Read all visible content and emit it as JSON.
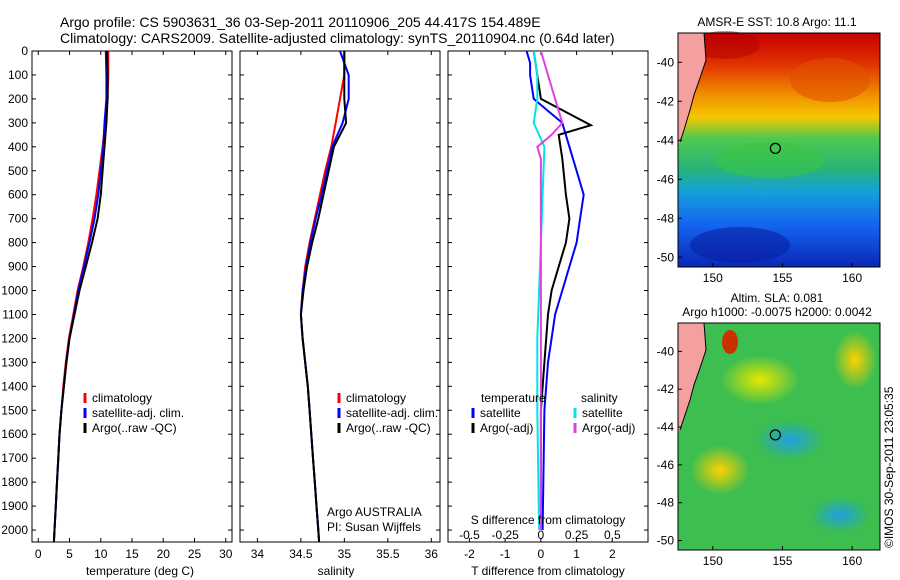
{
  "figure": {
    "title_line1": "Argo profile: CS 5903631_36 03-Sep-2011 20110906_205 44.417S 154.489E",
    "title_line2": "Climatology: CARS2009. Satellite-adjusted climatology: synTS_20110904.nc (0.64d later)",
    "credit": "©IMOS 30-Sep-2011 23:05:35",
    "float_owner": "Argo AUSTRALIA",
    "pi": "PI: Susan Wijffels"
  },
  "colors": {
    "climatology": "#ff0000",
    "satellite": "#0000ff",
    "argo": "#000000",
    "s_satellite": "#00e5e5",
    "s_argo": "#e040e0"
  },
  "chart_data": [
    {
      "id": "temperature",
      "type": "line",
      "xlabel": "temperature (deg C)",
      "ylabel": "",
      "xlim": [
        -1,
        31
      ],
      "ylim": [
        2050,
        0
      ],
      "xticks": [
        0,
        5,
        10,
        15,
        20,
        25,
        30
      ],
      "yticks": [
        0,
        100,
        200,
        300,
        400,
        500,
        600,
        700,
        800,
        900,
        1000,
        1100,
        1200,
        1300,
        1400,
        1500,
        1600,
        1700,
        1800,
        1900,
        2000
      ],
      "legend": [
        "climatology",
        "satellite-adj. clim.",
        "Argo(..raw -QC)"
      ],
      "legend_loc": "center-left",
      "series": [
        {
          "name": "climatology",
          "color": "#ff0000",
          "points": [
            [
              11.2,
              0
            ],
            [
              11.2,
              100
            ],
            [
              11.1,
              200
            ],
            [
              10.7,
              300
            ],
            [
              10.3,
              400
            ],
            [
              9.8,
              500
            ],
            [
              9.3,
              600
            ],
            [
              8.7,
              700
            ],
            [
              8.0,
              800
            ],
            [
              7.2,
              900
            ],
            [
              6.3,
              1000
            ],
            [
              5.6,
              1100
            ],
            [
              4.9,
              1200
            ],
            [
              4.4,
              1300
            ],
            [
              4.0,
              1400
            ],
            [
              3.7,
              1500
            ],
            [
              3.4,
              1600
            ],
            [
              3.2,
              1700
            ],
            [
              3.0,
              1800
            ],
            [
              2.8,
              1900
            ],
            [
              2.6,
              2000
            ],
            [
              2.5,
              2050
            ]
          ]
        },
        {
          "name": "satellite-adj. clim.",
          "color": "#0000ff",
          "points": [
            [
              10.8,
              0
            ],
            [
              10.9,
              100
            ],
            [
              10.9,
              200
            ],
            [
              10.6,
              300
            ],
            [
              10.4,
              400
            ],
            [
              10.0,
              500
            ],
            [
              9.6,
              600
            ],
            [
              9.0,
              700
            ],
            [
              8.2,
              800
            ],
            [
              7.3,
              900
            ],
            [
              6.4,
              1000
            ],
            [
              5.7,
              1100
            ],
            [
              5.0,
              1200
            ],
            [
              4.5,
              1300
            ],
            [
              4.1,
              1400
            ],
            [
              3.7,
              1500
            ],
            [
              3.4,
              1600
            ],
            [
              3.2,
              1700
            ],
            [
              3.0,
              1800
            ],
            [
              2.8,
              1900
            ],
            [
              2.6,
              2000
            ],
            [
              2.5,
              2050
            ]
          ]
        },
        {
          "name": "Argo(..raw -QC)",
          "color": "#000000",
          "points": [
            [
              11.0,
              0
            ],
            [
              11.1,
              100
            ],
            [
              11.1,
              200
            ],
            [
              10.9,
              300
            ],
            [
              10.6,
              400
            ],
            [
              10.3,
              500
            ],
            [
              10.0,
              600
            ],
            [
              9.5,
              700
            ],
            [
              8.6,
              800
            ],
            [
              7.6,
              900
            ],
            [
              6.6,
              1000
            ],
            [
              5.8,
              1100
            ],
            [
              5.0,
              1200
            ],
            [
              4.5,
              1300
            ],
            [
              4.1,
              1400
            ],
            [
              3.7,
              1500
            ],
            [
              3.4,
              1600
            ],
            [
              3.2,
              1700
            ],
            [
              3.0,
              1800
            ],
            [
              2.8,
              1900
            ],
            [
              2.6,
              2000
            ],
            [
              2.5,
              2050
            ]
          ]
        }
      ]
    },
    {
      "id": "salinity",
      "type": "line",
      "xlabel": "salinity",
      "ylabel": "",
      "xlim": [
        33.8,
        36.1
      ],
      "ylim": [
        2050,
        0
      ],
      "xticks": [
        34,
        34.5,
        35,
        35.5,
        36
      ],
      "xtick_labels": [
        "34",
        "34.5",
        "35",
        "35.5",
        "36"
      ],
      "legend": [
        "climatology",
        "satellite-adj. clim.",
        "Argo(..raw -QC)"
      ],
      "legend_loc": "center-right",
      "series": [
        {
          "name": "climatology",
          "color": "#ff0000",
          "points": [
            [
              35.0,
              0
            ],
            [
              35.0,
              100
            ],
            [
              34.95,
              200
            ],
            [
              34.9,
              300
            ],
            [
              34.85,
              400
            ],
            [
              34.78,
              500
            ],
            [
              34.72,
              600
            ],
            [
              34.66,
              700
            ],
            [
              34.6,
              800
            ],
            [
              34.55,
              900
            ],
            [
              34.52,
              1000
            ],
            [
              34.5,
              1100
            ],
            [
              34.52,
              1200
            ],
            [
              34.55,
              1300
            ],
            [
              34.58,
              1400
            ],
            [
              34.6,
              1500
            ],
            [
              34.62,
              1600
            ],
            [
              34.64,
              1700
            ],
            [
              34.66,
              1800
            ],
            [
              34.68,
              1900
            ],
            [
              34.7,
              2000
            ],
            [
              34.71,
              2050
            ]
          ]
        },
        {
          "name": "satellite-adj. clim.",
          "color": "#0000ff",
          "points": [
            [
              34.95,
              0
            ],
            [
              35.05,
              100
            ],
            [
              35.05,
              200
            ],
            [
              34.98,
              300
            ],
            [
              34.86,
              400
            ],
            [
              34.8,
              500
            ],
            [
              34.74,
              600
            ],
            [
              34.67,
              700
            ],
            [
              34.61,
              800
            ],
            [
              34.56,
              900
            ],
            [
              34.52,
              1000
            ],
            [
              34.5,
              1100
            ],
            [
              34.52,
              1200
            ],
            [
              34.55,
              1300
            ],
            [
              34.58,
              1400
            ],
            [
              34.6,
              1500
            ],
            [
              34.62,
              1600
            ],
            [
              34.64,
              1700
            ],
            [
              34.66,
              1800
            ],
            [
              34.68,
              1900
            ],
            [
              34.7,
              2000
            ],
            [
              34.71,
              2050
            ]
          ]
        },
        {
          "name": "Argo(..raw -QC)",
          "color": "#000000",
          "points": [
            [
              35.0,
              0
            ],
            [
              35.0,
              100
            ],
            [
              35.0,
              200
            ],
            [
              35.02,
              300
            ],
            [
              34.88,
              400
            ],
            [
              34.82,
              500
            ],
            [
              34.76,
              600
            ],
            [
              34.7,
              700
            ],
            [
              34.63,
              800
            ],
            [
              34.57,
              900
            ],
            [
              34.53,
              1000
            ],
            [
              34.5,
              1100
            ],
            [
              34.52,
              1200
            ],
            [
              34.55,
              1300
            ],
            [
              34.58,
              1400
            ],
            [
              34.6,
              1500
            ],
            [
              34.62,
              1600
            ],
            [
              34.64,
              1700
            ],
            [
              34.66,
              1800
            ],
            [
              34.68,
              1900
            ],
            [
              34.7,
              2000
            ],
            [
              34.71,
              2050
            ]
          ]
        }
      ]
    },
    {
      "id": "difference",
      "type": "line",
      "xlabel": "T difference from climatology",
      "xlabel_top": "S difference from climatology",
      "xlim": [
        -2.6,
        3.0
      ],
      "ylim": [
        2050,
        0
      ],
      "xticks": [
        -2,
        -1,
        0,
        1,
        2
      ],
      "s_ticks": [
        {
          "pos": -2,
          "label": "-0.5"
        },
        {
          "pos": -1,
          "label": "-0.25"
        },
        {
          "pos": 0,
          "label": "0"
        },
        {
          "pos": 1,
          "label": "0.25"
        },
        {
          "pos": 2,
          "label": "0.5"
        }
      ],
      "legend_groups": [
        {
          "header": "temperature",
          "entries": [
            "satellite",
            "Argo(-adj)"
          ]
        },
        {
          "header": "salinity",
          "entries": [
            "satellite",
            "Argo(-adj)"
          ]
        }
      ],
      "series": [
        {
          "name": "T satellite",
          "color": "#0000ff",
          "points": [
            [
              -0.4,
              0
            ],
            [
              -0.3,
              50
            ],
            [
              -0.3,
              100
            ],
            [
              -0.2,
              200
            ],
            [
              0.6,
              300
            ],
            [
              0.8,
              400
            ],
            [
              1.0,
              500
            ],
            [
              1.2,
              600
            ],
            [
              1.1,
              700
            ],
            [
              1.0,
              800
            ],
            [
              0.8,
              900
            ],
            [
              0.6,
              1000
            ],
            [
              0.4,
              1100
            ],
            [
              0.3,
              1200
            ],
            [
              0.2,
              1300
            ],
            [
              0.1,
              1500
            ],
            [
              0.05,
              2000
            ]
          ]
        },
        {
          "name": "T Argo(-adj)",
          "color": "#000000",
          "points": [
            [
              -0.2,
              0
            ],
            [
              -0.1,
              100
            ],
            [
              0.0,
              200
            ],
            [
              1.4,
              310
            ],
            [
              0.5,
              350
            ],
            [
              0.6,
              450
            ],
            [
              0.7,
              600
            ],
            [
              0.8,
              700
            ],
            [
              0.7,
              800
            ],
            [
              0.5,
              900
            ],
            [
              0.3,
              1000
            ],
            [
              0.2,
              1100
            ],
            [
              0.1,
              1300
            ],
            [
              0.0,
              1500
            ],
            [
              0.0,
              2000
            ]
          ]
        },
        {
          "name": "S satellite",
          "color": "#00e5e5",
          "points": [
            [
              -0.2,
              0
            ],
            [
              -0.1,
              100
            ],
            [
              -0.1,
              200
            ],
            [
              -0.2,
              300
            ],
            [
              0.1,
              400
            ],
            [
              0.05,
              600
            ],
            [
              0.0,
              800
            ],
            [
              -0.05,
              1000
            ],
            [
              -0.1,
              1200
            ],
            [
              -0.1,
              1500
            ],
            [
              -0.05,
              2000
            ]
          ]
        },
        {
          "name": "S Argo(-adj)",
          "color": "#e040e0",
          "points": [
            [
              0.0,
              0
            ],
            [
              0.2,
              100
            ],
            [
              0.4,
              200
            ],
            [
              0.6,
              300
            ],
            [
              0.3,
              350
            ],
            [
              -0.1,
              400
            ],
            [
              0.0,
              450
            ],
            [
              0.0,
              600
            ],
            [
              0.0,
              900
            ],
            [
              0.0,
              1200
            ],
            [
              0.0,
              1500
            ],
            [
              0.0,
              2000
            ]
          ]
        }
      ]
    },
    {
      "id": "sst_map",
      "type": "heatmap",
      "title": "AMSR-E SST: 10.8  Argo: 11.1",
      "xlim": [
        147.5,
        162
      ],
      "ylim": [
        -50.5,
        -38.5
      ],
      "xticks": [
        150,
        155,
        160
      ],
      "yticks": [
        -40,
        -42,
        -44,
        -46,
        -48,
        -50
      ],
      "marker": {
        "lon": 154.489,
        "lat": -44.417
      }
    },
    {
      "id": "sla_map",
      "type": "heatmap",
      "title": "Altim. SLA: 0.081",
      "title_line2": "Argo h1000: -0.0075 h2000: 0.0042",
      "xlim": [
        147.5,
        162
      ],
      "ylim": [
        -50.5,
        -38.5
      ],
      "xticks": [
        150,
        155,
        160
      ],
      "yticks": [
        -40,
        -42,
        -44,
        -46,
        -48,
        -50
      ],
      "marker": {
        "lon": 154.489,
        "lat": -44.417
      }
    }
  ]
}
